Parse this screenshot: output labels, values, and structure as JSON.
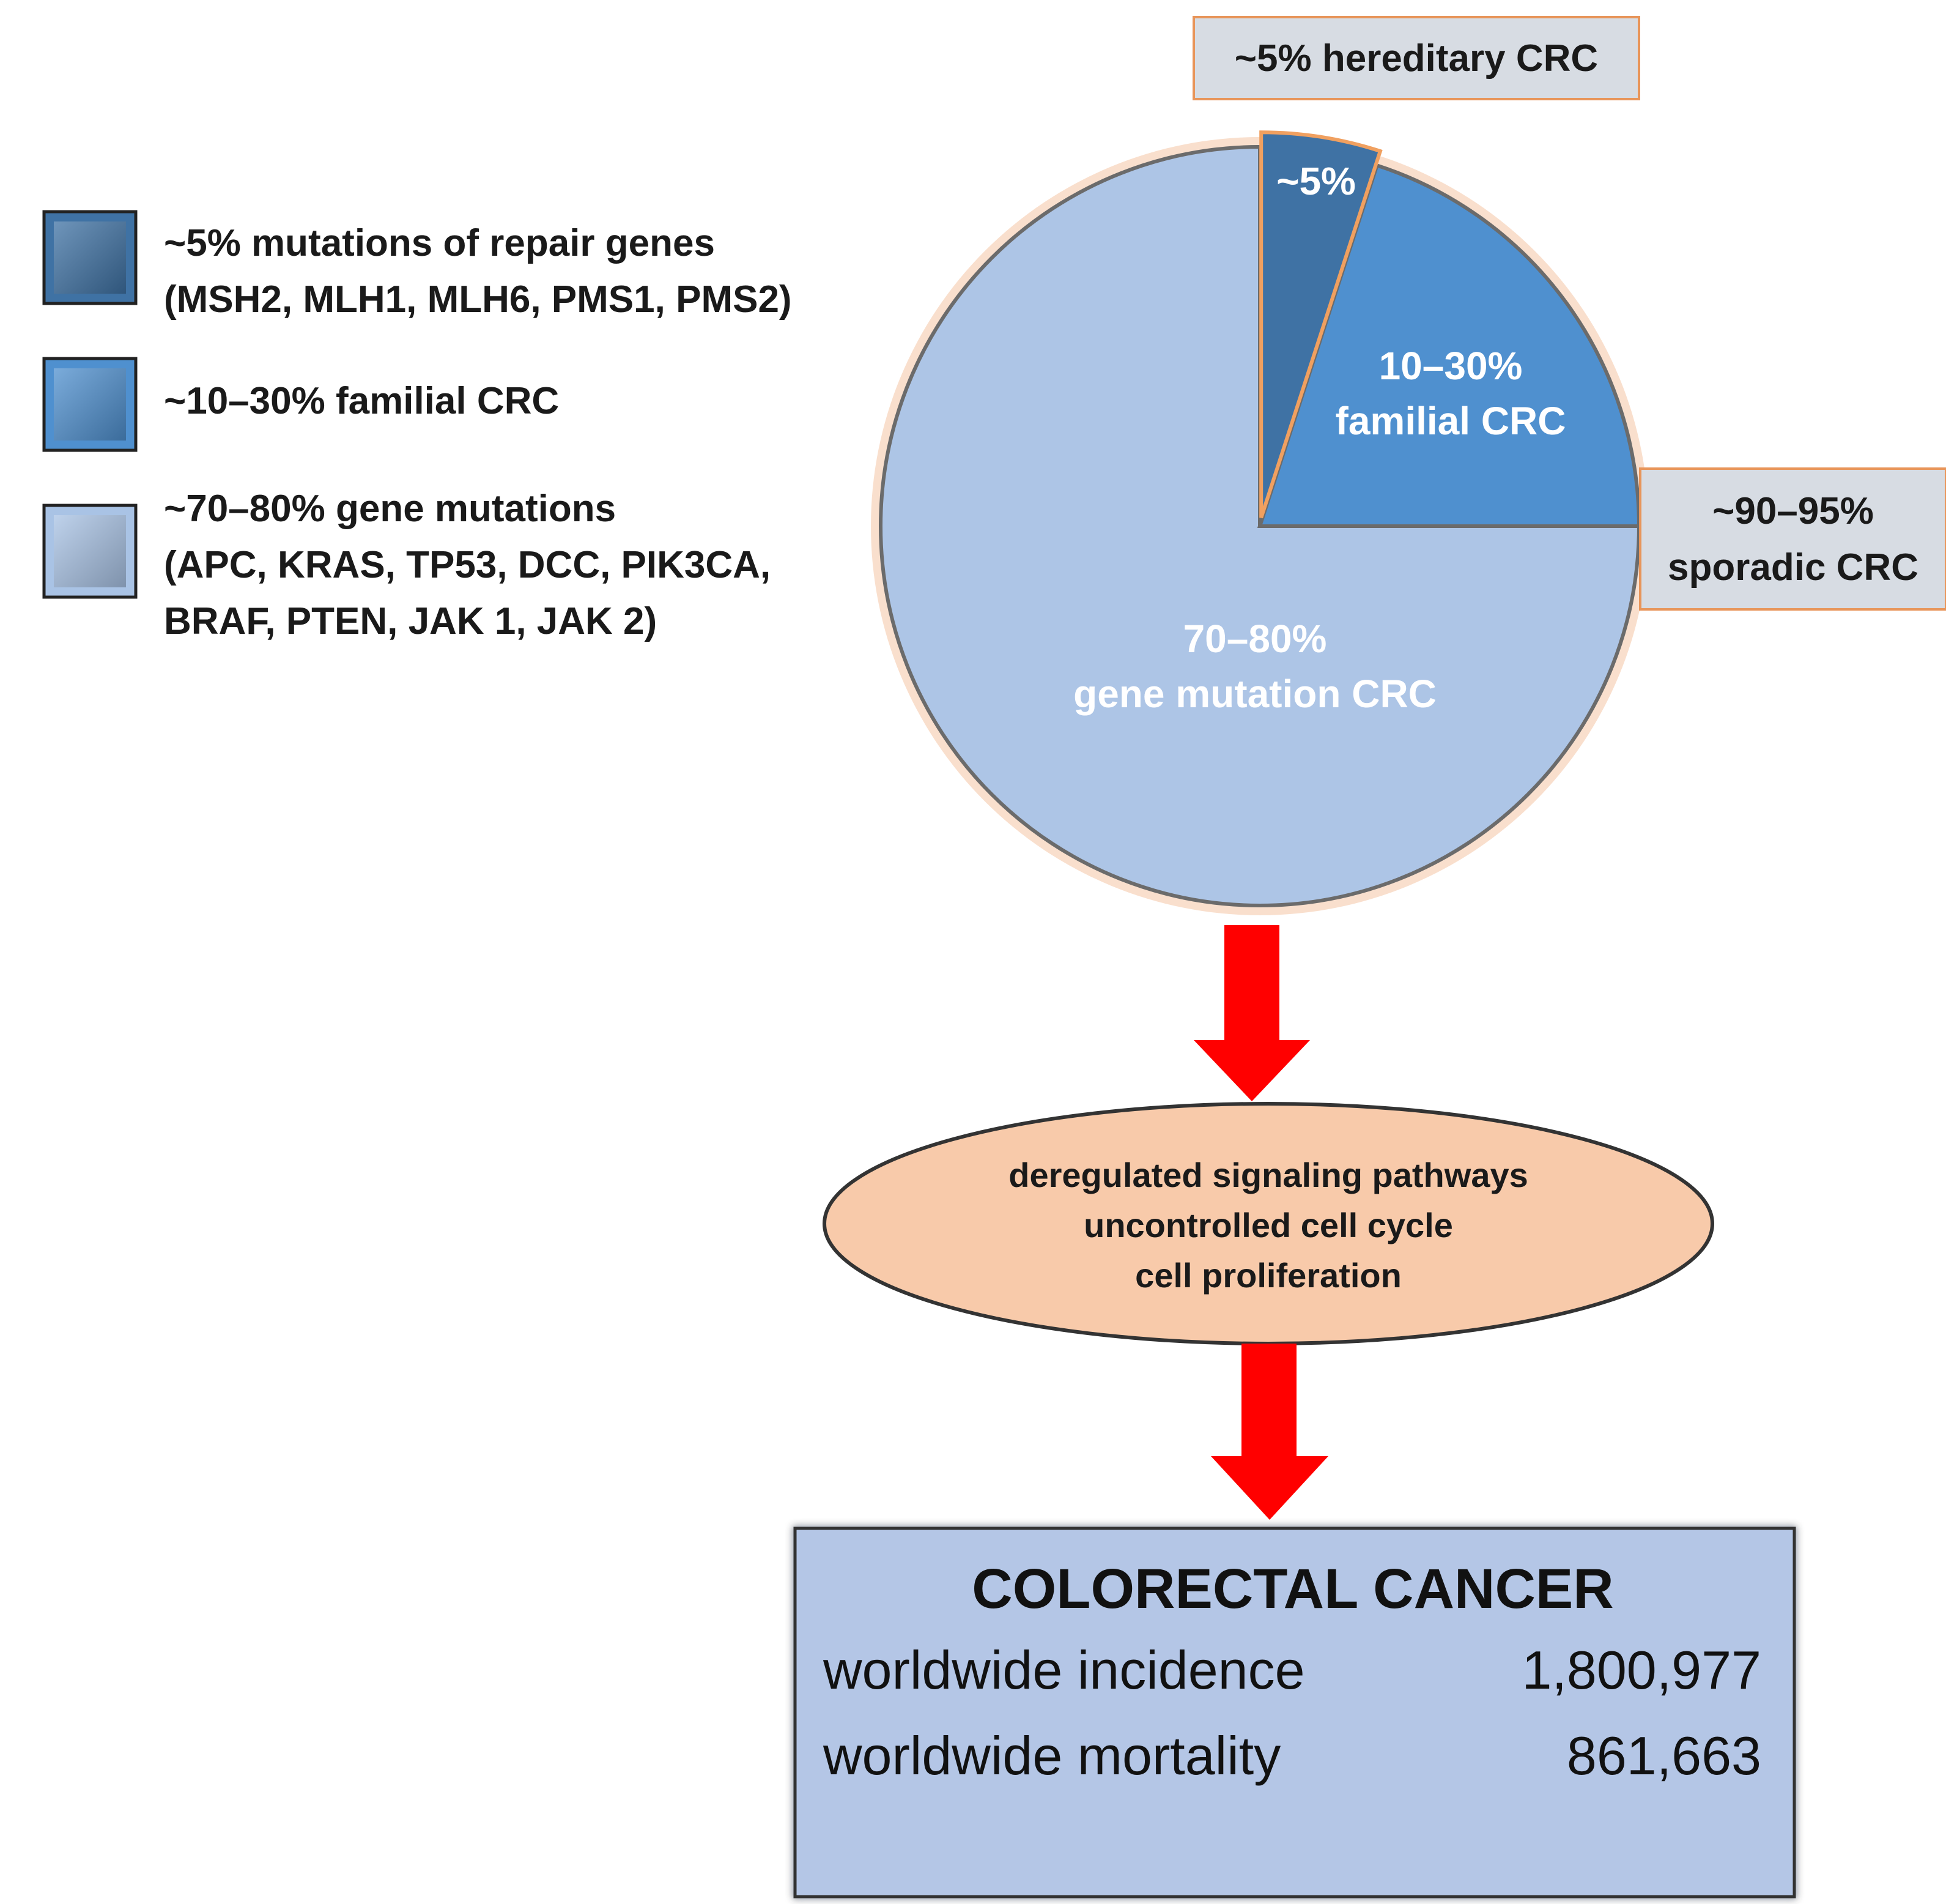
{
  "legend": {
    "items": [
      {
        "lines": [
          "~5% mutations of repair genes",
          "(MSH2, MLH1, MLH6, PMS1, PMS2)"
        ],
        "color": "#3f72a4"
      },
      {
        "lines": [
          "~10–30% familial CRC"
        ],
        "color": "#4f90cf"
      },
      {
        "lines": [
          "~70–80% gene mutations",
          "(APC, KRAS, TP53, DCC, PIK3CA,",
          "BRAF, PTEN, JAK 1, JAK 2)"
        ],
        "color": "#a9c3e5"
      }
    ]
  },
  "chart_data": {
    "type": "pie",
    "slices": [
      {
        "name": "hereditary",
        "label_lines": [
          "~5%"
        ],
        "value": 5,
        "color": "#3f72a4",
        "exploded": true
      },
      {
        "name": "familial",
        "label_lines": [
          "10–30%",
          "familial CRC"
        ],
        "value": 20,
        "color": "#4f90cf",
        "exploded": false
      },
      {
        "name": "gene-mutation",
        "label_lines": [
          "70–80%",
          "gene mutation CRC"
        ],
        "value": 75,
        "color": "#adc5e6",
        "exploded": false
      }
    ],
    "callouts": {
      "hereditary": "~5% hereditary CRC",
      "sporadic": [
        "~90–95%",
        "sporadic CRC"
      ]
    }
  },
  "flow": {
    "ellipse_lines": [
      "deregulated signaling pathways",
      "uncontrolled cell cycle",
      "cell proliferation"
    ],
    "arrow_color": "#ff0000",
    "ellipse_color": "#f8caaa"
  },
  "result_box": {
    "title": "COLORECTAL CANCER",
    "rows": [
      {
        "label": "worldwide incidence",
        "value": "1,800,977"
      },
      {
        "label": "worldwide mortality",
        "value": "861,663"
      }
    ],
    "color": "#b4c6e6"
  }
}
